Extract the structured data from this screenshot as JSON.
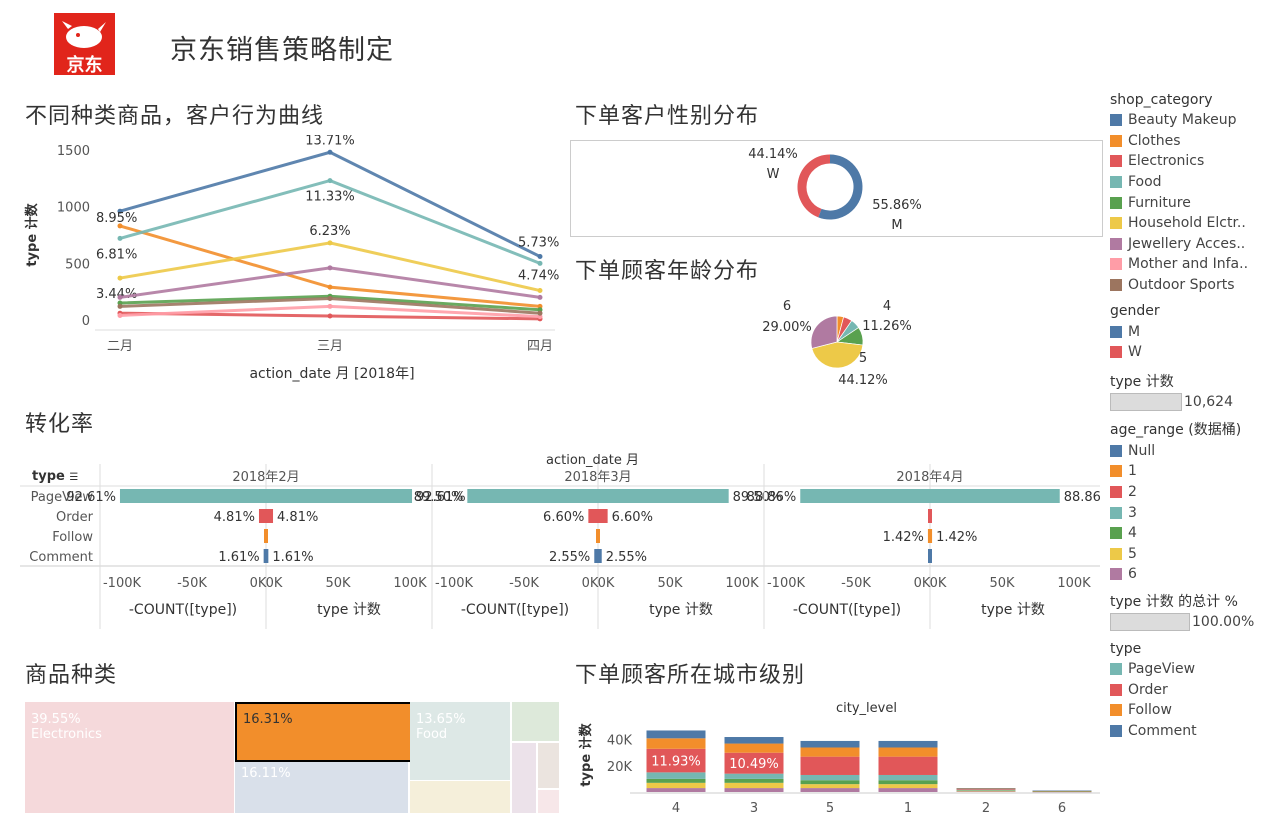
{
  "header": {
    "logo_text": "京东",
    "title": "京东销售策略制定"
  },
  "line_section": {
    "title": "不同种类商品，客户行为曲线",
    "y_label": "type 计数",
    "x_label": "action_date 月 [2018年]"
  },
  "gender_section": {
    "title": "下单客户性别分布"
  },
  "age_section": {
    "title": "下单顾客年龄分布"
  },
  "conversion_section": {
    "title": "转化率",
    "header": "action_date 月",
    "row_header": "type",
    "rows": [
      "PageView",
      "Order",
      "Follow",
      "Comment"
    ],
    "neg_axis": [
      "-100K",
      "-50K",
      "0K"
    ],
    "pos_axis": [
      "0K",
      "50K",
      "100K"
    ],
    "neg_label": "-COUNT([type])",
    "pos_label": "type 计数",
    "panels": [
      {
        "label": "2018年2月",
        "rows": [
          {
            "l": "92.61%",
            "r": "92.61%",
            "v": 92.61
          },
          {
            "l": "4.81%",
            "r": "4.81%",
            "v": 4.81
          },
          {
            "l": "",
            "r": "",
            "v": 0.3
          },
          {
            "l": "1.61%",
            "r": "1.61%",
            "v": 1.61
          }
        ]
      },
      {
        "label": "2018年3月",
        "rows": [
          {
            "l": "89.50%",
            "r": "89.50%",
            "v": 89.5
          },
          {
            "l": "6.60%",
            "r": "6.60%",
            "v": 6.6
          },
          {
            "l": "",
            "r": "",
            "v": 0.3
          },
          {
            "l": "2.55%",
            "r": "2.55%",
            "v": 2.55
          }
        ]
      },
      {
        "label": "2018年4月",
        "rows": [
          {
            "l": "88.86%",
            "r": "88.86%",
            "v": 88.86
          },
          {
            "l": "",
            "r": "",
            "v": 1.2
          },
          {
            "l": "1.42%",
            "r": "1.42%",
            "v": 1.42
          },
          {
            "l": "",
            "r": "",
            "v": 0.3
          }
        ]
      }
    ]
  },
  "treemap_section": {
    "title": "商品种类",
    "cells": [
      {
        "pct": "39.55%",
        "name": "Electronics"
      },
      {
        "pct": "16.31%",
        "name": ""
      },
      {
        "pct": "13.65%",
        "name": "Food"
      },
      {
        "pct": "16.11%",
        "name": ""
      }
    ]
  },
  "city_section": {
    "title": "下单顾客所在城市级别",
    "header": "city_level",
    "y_label": "type 计数"
  },
  "legend": {
    "shop_category_title": "shop_category",
    "shop_category": [
      {
        "name": "Beauty Makeup",
        "color": "#4e79a7"
      },
      {
        "name": "Clothes",
        "color": "#f28e2b"
      },
      {
        "name": "Electronics",
        "color": "#e15759"
      },
      {
        "name": "Food",
        "color": "#76b7b2"
      },
      {
        "name": "Furniture",
        "color": "#59a14f"
      },
      {
        "name": "Household Elctr..",
        "color": "#edc948"
      },
      {
        "name": "Jewellery Acces..",
        "color": "#b07aa1"
      },
      {
        "name": "Mother and Infa..",
        "color": "#ff9da7"
      },
      {
        "name": "Outdoor Sports",
        "color": "#9c755f"
      }
    ],
    "gender_title": "gender",
    "gender": [
      {
        "name": "M",
        "color": "#4e79a7"
      },
      {
        "name": "W",
        "color": "#e15759"
      }
    ],
    "count_title": "type 计数",
    "count_value": "10,624",
    "age_title": "age_range (数据桶)",
    "age": [
      {
        "name": "Null",
        "color": "#4e79a7"
      },
      {
        "name": "1",
        "color": "#f28e2b"
      },
      {
        "name": "2",
        "color": "#e15759"
      },
      {
        "name": "3",
        "color": "#76b7b2"
      },
      {
        "name": "4",
        "color": "#59a14f"
      },
      {
        "name": "5",
        "color": "#edc948"
      },
      {
        "name": "6",
        "color": "#b07aa1"
      }
    ],
    "total_title": "type 计数 的总计 %",
    "total_value": "100.00%",
    "type_title": "type",
    "type": [
      {
        "name": "PageView",
        "color": "#76b7b2"
      },
      {
        "name": "Order",
        "color": "#e15759"
      },
      {
        "name": "Follow",
        "color": "#f28e2b"
      },
      {
        "name": "Comment",
        "color": "#4e79a7"
      }
    ]
  },
  "chart_data": [
    {
      "type": "line",
      "title": "不同种类商品，客户行为曲线",
      "xlabel": "action_date 月 [2018年]",
      "ylabel": "type 计数",
      "categories": [
        "二月",
        "三月",
        "四月"
      ],
      "y_ticks": [
        "0",
        "500",
        "1000",
        "1500"
      ],
      "ylim": [
        0,
        1500
      ],
      "series": [
        {
          "name": "Beauty Makeup",
          "color": "#4e79a7",
          "values": [
            960,
            1480,
            560
          ],
          "labels": [
            "",
            "13.71%",
            "5.73%"
          ]
        },
        {
          "name": "Clothes",
          "color": "#f28e2b",
          "values": [
            830,
            290,
            120
          ],
          "labels": [
            "8.95%",
            "",
            ""
          ]
        },
        {
          "name": "Electronics",
          "color": "#e15759",
          "values": [
            60,
            35,
            10
          ],
          "labels": [
            "",
            "",
            ""
          ]
        },
        {
          "name": "Food",
          "color": "#76b7b2",
          "values": [
            720,
            1230,
            500
          ],
          "labels": [
            "6.81%",
            "11.33%",
            "4.74%"
          ]
        },
        {
          "name": "Furniture",
          "color": "#59a14f",
          "values": [
            150,
            210,
            90
          ],
          "labels": [
            "",
            "",
            ""
          ]
        },
        {
          "name": "Household Elctr..",
          "color": "#edc948",
          "values": [
            370,
            680,
            260
          ],
          "labels": [
            "3.44%",
            "6.23%",
            ""
          ]
        },
        {
          "name": "Jewellery Acces..",
          "color": "#b07aa1",
          "values": [
            200,
            460,
            200
          ],
          "labels": [
            "",
            "",
            ""
          ]
        },
        {
          "name": "Mother and Infa..",
          "color": "#ff9da7",
          "values": [
            40,
            120,
            30
          ],
          "labels": [
            "",
            "",
            ""
          ]
        },
        {
          "name": "Outdoor Sports",
          "color": "#9c755f",
          "values": [
            120,
            190,
            60
          ],
          "labels": [
            "",
            "",
            ""
          ]
        }
      ]
    },
    {
      "type": "pie",
      "title": "下单客户性别分布",
      "slices": [
        {
          "name": "W",
          "value": 44.14,
          "label": "44.14%",
          "color": "#e15759"
        },
        {
          "name": "M",
          "value": 55.86,
          "label": "55.86%",
          "color": "#4e79a7"
        }
      ]
    },
    {
      "type": "pie",
      "title": "下单顾客年龄分布",
      "slices": [
        {
          "name": "4",
          "value": 11.26,
          "label": "11.26%",
          "color": "#59a14f"
        },
        {
          "name": "5",
          "value": 44.12,
          "label": "44.12%",
          "color": "#edc948"
        },
        {
          "name": "6",
          "value": 29.0,
          "label": "29.00%",
          "color": "#b07aa1"
        },
        {
          "name": "2",
          "value": 5.5,
          "label": "",
          "color": "#e15759"
        },
        {
          "name": "3",
          "value": 6.0,
          "label": "",
          "color": "#76b7b2"
        },
        {
          "name": "1",
          "value": 4.12,
          "label": "",
          "color": "#f28e2b"
        }
      ]
    },
    {
      "type": "bar",
      "title": "下单顾客所在城市级别",
      "xlabel": "city_level",
      "ylabel": "type 计数",
      "categories": [
        "4",
        "3",
        "5",
        "1",
        "2",
        "6"
      ],
      "y_ticks": [
        "20K",
        "40K"
      ],
      "ylim": [
        0,
        55000
      ],
      "stack_colors": [
        "#b07aa1",
        "#edc948",
        "#59a14f",
        "#76b7b2",
        "#e15759",
        "#f28e2b",
        "#4e79a7"
      ],
      "stacks": [
        [
          3000,
          4000,
          3000,
          5000,
          18000,
          8000,
          6000
        ],
        [
          3000,
          4000,
          3000,
          4000,
          16000,
          7000,
          5000
        ],
        [
          3000,
          3000,
          3000,
          4000,
          14000,
          7000,
          5000
        ],
        [
          3000,
          3000,
          3000,
          4000,
          14000,
          7000,
          5000
        ],
        [
          500,
          500,
          300,
          500,
          600,
          300,
          300
        ],
        [
          200,
          200,
          100,
          200,
          200,
          100,
          100
        ]
      ],
      "labels": [
        "11.93%",
        "10.49%",
        "",
        "",
        "",
        ""
      ]
    }
  ]
}
